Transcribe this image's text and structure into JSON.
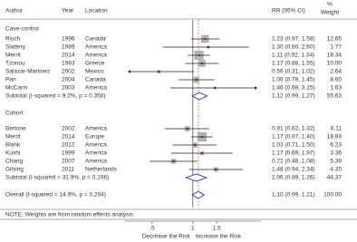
{
  "chart_data": {
    "type": "forest",
    "headers": {
      "author": "Author",
      "year": "Year",
      "location": "Location",
      "estimate": "RR (95% CI)",
      "weight_unit": "%",
      "weight": "Weight"
    },
    "groups": [
      {
        "name": "Case-control",
        "studies": [
          {
            "author": "Risch",
            "year": "1996",
            "location": "Canada",
            "rr": 1.23,
            "lo": 0.97,
            "hi": 1.58,
            "ci_label": "1.23 (0.97, 1.58)",
            "weight": 12.65
          },
          {
            "author": "Slattery",
            "year": "1989",
            "location": "America",
            "rr": 1.3,
            "lo": 0.6,
            "hi": 2.6,
            "ci_label": "1.30 (0.60, 2.60)",
            "weight": 1.77
          },
          {
            "author": "Merrit",
            "year": "2014",
            "location": "America",
            "rr": 1.11,
            "lo": 0.92,
            "hi": 1.34,
            "ci_label": "1.11 (0.92, 1.34)",
            "weight": 18.34
          },
          {
            "author": "Tzonou",
            "year": "1993",
            "location": "Greece",
            "rr": 1.17,
            "lo": 0.88,
            "hi": 1.55,
            "ci_label": "1.17 (0.88, 1.55)",
            "weight": 10,
            "weight_label": "10.00"
          },
          {
            "author": "Salazar-Martinez",
            "year": "2002",
            "location": "Mexico",
            "rr": 0.56,
            "lo": 0.31,
            "hi": 1.02,
            "ci_label": "0.56 (0.31, 1.02)",
            "weight": 2.64
          },
          {
            "author": "Pan",
            "year": "2004",
            "location": "Canada",
            "rr": 1.06,
            "lo": 0.78,
            "hi": 1.45,
            "ci_label": "1.06 (0.78, 1.45)",
            "weight": 8.6,
            "weight_label": "8.60"
          },
          {
            "author": "McCann",
            "year": "2003",
            "location": "America",
            "rr": 1.46,
            "lo": 0.68,
            "hi": 3.15,
            "ci_label": "1.46 (0.68, 3.15)",
            "weight": 1.63
          }
        ],
        "subtotal": {
          "label": "Subtotal  (I-squared = 9.2%, p = 0.358)",
          "rr": 1.12,
          "lo": 0.99,
          "hi": 1.27,
          "ci_label": "1.12 (0.99, 1.27)",
          "weight": 55.63
        }
      },
      {
        "name": "Cohort",
        "studies": [
          {
            "author": "Bertone",
            "year": "2002",
            "location": "America",
            "rr": 0.91,
            "lo": 0.62,
            "hi": 1.32,
            "ci_label": "0.91 (0.62, 1.32)",
            "weight": 6.11
          },
          {
            "author": "Merrit",
            "year": "2014",
            "location": "Europe",
            "rr": 1.17,
            "lo": 0.97,
            "hi": 1.4,
            "ci_label": "1.17 (0.97, 1.40)",
            "weight": 18.93
          },
          {
            "author": "Blank",
            "year": "2012",
            "location": "America",
            "rr": 1.03,
            "lo": 0.71,
            "hi": 1.5,
            "ci_label": "1.03 (0.71, 1.50)",
            "weight": 6.23
          },
          {
            "author": "Kushi",
            "year": "1999",
            "location": "America",
            "rr": 1.17,
            "lo": 0.69,
            "hi": 1.97,
            "ci_label": "1.17 (0.69, 1.97)",
            "weight": 3.36
          },
          {
            "author": "Chang",
            "year": "2007",
            "location": "America",
            "rr": 0.72,
            "lo": 0.48,
            "hi": 1.08,
            "ci_label": "0.72 (0.48, 1.08)",
            "weight": 5.39
          },
          {
            "author": "Gilsing",
            "year": "2011",
            "location": "Netherlands",
            "rr": 1.48,
            "lo": 0.94,
            "hi": 2.34,
            "ci_label": "1.48 (0.94, 2.34)",
            "weight": 4.35
          }
        ],
        "subtotal": {
          "label": "Subtotal  (I-squared = 31.9%, p = 0.196)",
          "rr": 1.06,
          "lo": 0.89,
          "hi": 1.26,
          "ci_label": "1.06 (0.89, 1.26)",
          "weight": 44.37
        }
      }
    ],
    "overall": {
      "label": "Overall  (I-squared = 14.9%, p = 0.294)",
      "rr": 1.1,
      "lo": 0.99,
      "hi": 1.21,
      "ci_label": "1.10 (0.99, 1.21)",
      "weight": 100,
      "weight_label": "100.00"
    },
    "note": "NOTE: Weights are from random effects analysis",
    "xscale": "log",
    "xlim": [
      0.33,
      3.0
    ],
    "xticks": [
      {
        "value": 0.5,
        "label": ".5"
      },
      1,
      1.5
    ],
    "reference_line": 1,
    "xlabel_left": "Decrease the Risk",
    "xlabel_right": "Increase the Risk",
    "box_color": "#b4b4b4",
    "diamond_color": "#27358f",
    "overall_line_color": "#d04848"
  }
}
